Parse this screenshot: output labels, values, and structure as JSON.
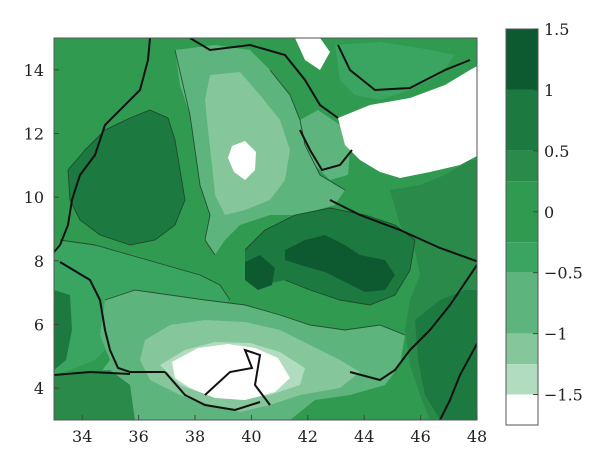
{
  "chart_data": {
    "type": "heatmap",
    "subtype": "filled contour map",
    "x_ticks": [
      "34",
      "36",
      "38",
      "40",
      "42",
      "44",
      "46",
      "48"
    ],
    "y_ticks": [
      "4",
      "6",
      "8",
      "10",
      "12",
      "14"
    ],
    "xlim": [
      33,
      48
    ],
    "ylim": [
      3,
      15
    ],
    "colorbar": {
      "ticks": [
        "1.5",
        "1",
        "0.5",
        "0",
        "−0.5",
        "−1",
        "−1.5"
      ],
      "range": [
        -1.75,
        1.5
      ],
      "levels": [
        {
          "from": 1.0,
          "to": 1.5,
          "color": "#0e5a30"
        },
        {
          "from": 0.5,
          "to": 1.0,
          "color": "#1c7a40"
        },
        {
          "from": 0.25,
          "to": 0.5,
          "color": "#2a8a4a"
        },
        {
          "from": -0.25,
          "to": 0.25,
          "color": "#2f9a50"
        },
        {
          "from": -0.5,
          "to": -0.25,
          "color": "#3aa560"
        },
        {
          "from": -1.0,
          "to": -0.5,
          "color": "#5db47c"
        },
        {
          "from": -1.25,
          "to": -1.0,
          "color": "#85c69a"
        },
        {
          "from": -1.5,
          "to": -1.25,
          "color": "#b2dcbf"
        },
        {
          "from": -1.75,
          "to": -1.5,
          "color": "#ffffff"
        }
      ]
    },
    "grid": false,
    "legend": "colorbar right"
  }
}
